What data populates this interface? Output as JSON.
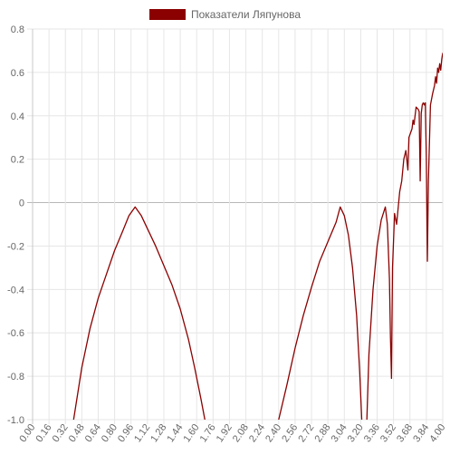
{
  "chart_data": {
    "type": "line",
    "legend": {
      "position": "top-center"
    },
    "grid": true,
    "xlim": [
      0,
      4
    ],
    "ylim": [
      -1.0,
      0.8
    ],
    "y_ticks": [
      0.8,
      0.6,
      0.4,
      0.2,
      0,
      -0.2,
      -0.4,
      -0.6,
      -0.8,
      -1.0
    ],
    "y_tick_labels": [
      "0.8",
      "0.6",
      "0.4",
      "0.2",
      "0",
      "-0.2",
      "-0.4",
      "-0.6",
      "-0.8",
      "-1.0"
    ],
    "x_tick_labels": [
      "0.00",
      "0.16",
      "0.32",
      "0.48",
      "0.64",
      "0.80",
      "0.96",
      "1.12",
      "1.28",
      "1.44",
      "1.60",
      "1.76",
      "1.92",
      "2.08",
      "2.24",
      "2.40",
      "2.56",
      "2.72",
      "2.88",
      "3.04",
      "3.20",
      "3.36",
      "3.52",
      "3.68",
      "3.84",
      "4.00"
    ],
    "series": [
      {
        "name": "Показатели Ляпунова",
        "color": "#8b0000",
        "points": [
          [
            0.4,
            -1.0
          ],
          [
            0.48,
            -0.76
          ],
          [
            0.56,
            -0.58
          ],
          [
            0.64,
            -0.44
          ],
          [
            0.72,
            -0.33
          ],
          [
            0.8,
            -0.22
          ],
          [
            0.88,
            -0.13
          ],
          [
            0.94,
            -0.06
          ],
          [
            1.0,
            -0.02
          ],
          [
            1.06,
            -0.06
          ],
          [
            1.12,
            -0.12
          ],
          [
            1.2,
            -0.2
          ],
          [
            1.28,
            -0.29
          ],
          [
            1.36,
            -0.38
          ],
          [
            1.44,
            -0.49
          ],
          [
            1.52,
            -0.63
          ],
          [
            1.58,
            -0.76
          ],
          [
            1.64,
            -0.9
          ],
          [
            1.68,
            -1.0
          ],
          null,
          [
            2.4,
            -1.0
          ],
          [
            2.48,
            -0.84
          ],
          [
            2.56,
            -0.67
          ],
          [
            2.64,
            -0.52
          ],
          [
            2.72,
            -0.39
          ],
          [
            2.8,
            -0.27
          ],
          [
            2.88,
            -0.18
          ],
          [
            2.96,
            -0.09
          ],
          [
            3.0,
            -0.02
          ],
          [
            3.04,
            -0.06
          ],
          [
            3.08,
            -0.15
          ],
          [
            3.12,
            -0.3
          ],
          [
            3.16,
            -0.52
          ],
          [
            3.19,
            -0.78
          ],
          [
            3.21,
            -1.0
          ],
          null,
          [
            3.26,
            -1.0
          ],
          [
            3.28,
            -0.7
          ],
          [
            3.32,
            -0.4
          ],
          [
            3.36,
            -0.2
          ],
          [
            3.4,
            -0.08
          ],
          [
            3.44,
            -0.02
          ],
          [
            3.46,
            -0.1
          ],
          [
            3.48,
            -0.35
          ],
          [
            3.49,
            -0.62
          ],
          [
            3.5,
            -0.81
          ],
          [
            3.51,
            -0.3
          ],
          [
            3.53,
            -0.05
          ],
          [
            3.55,
            -0.1
          ],
          [
            3.58,
            0.05
          ],
          [
            3.6,
            0.1
          ],
          [
            3.62,
            0.2
          ],
          [
            3.64,
            0.24
          ],
          [
            3.66,
            0.15
          ],
          [
            3.67,
            0.3
          ],
          [
            3.7,
            0.34
          ],
          [
            3.71,
            0.38
          ],
          [
            3.72,
            0.36
          ],
          [
            3.74,
            0.44
          ],
          [
            3.76,
            0.43
          ],
          [
            3.77,
            0.42
          ],
          [
            3.78,
            0.1
          ],
          [
            3.79,
            0.41
          ],
          [
            3.8,
            0.45
          ],
          [
            3.81,
            0.46
          ],
          [
            3.82,
            0.45
          ],
          [
            3.83,
            0.46
          ],
          [
            3.84,
            0.2
          ],
          [
            3.85,
            -0.27
          ],
          [
            3.86,
            0.1
          ],
          [
            3.88,
            0.45
          ],
          [
            3.9,
            0.5
          ],
          [
            3.92,
            0.54
          ],
          [
            3.93,
            0.58
          ],
          [
            3.94,
            0.55
          ],
          [
            3.95,
            0.62
          ],
          [
            3.96,
            0.6
          ],
          [
            3.97,
            0.64
          ],
          [
            3.98,
            0.61
          ],
          [
            3.99,
            0.66
          ],
          [
            4.0,
            0.69
          ]
        ]
      }
    ]
  }
}
